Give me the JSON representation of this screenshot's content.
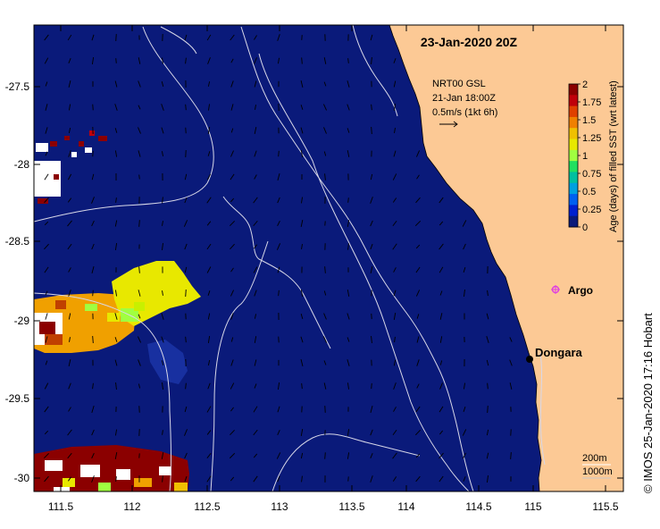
{
  "map": {
    "title": "23-Jan-2020 20Z",
    "x_ticks": [
      "111.5",
      "112",
      "112.5",
      "113",
      "113.5",
      "114",
      "114.5",
      "115",
      "115.5"
    ],
    "y_ticks": [
      "-27.5",
      "-28",
      "-28.5",
      "-29",
      "-29.5",
      "-30"
    ],
    "colors": {
      "ocean": "#0a1a7a",
      "land": "#fcc995",
      "arrow": "#000000",
      "contour": "#d8d8e8",
      "argo_marker": "#e040e0"
    }
  },
  "legend": {
    "line1": "NRT00 GSL",
    "line2": "21-Jan 18:00Z",
    "line3": "0.5m/s (1kt 6h)"
  },
  "colorbar": {
    "title": "Age (days) of filled SST (wrt latest)",
    "ticks": [
      "2",
      "1.75",
      "1.5",
      "1.25",
      "1",
      "0.75",
      "0.5",
      "0.25",
      "0"
    ],
    "colors": [
      "#8b0000",
      "#c0000a",
      "#e04000",
      "#f08000",
      "#f0c000",
      "#e8e800",
      "#a0ff40",
      "#20e060",
      "#00c0a0",
      "#00a0e0",
      "#0060f0",
      "#0020d0",
      "#0a1a7a"
    ]
  },
  "places": {
    "argo": "Argo",
    "dongara": "Dongara"
  },
  "depth_labels": {
    "d200": "200m",
    "d1000": "1000m"
  },
  "credit": "© IMOS 25-Jan-2020 17:16 Hobart"
}
